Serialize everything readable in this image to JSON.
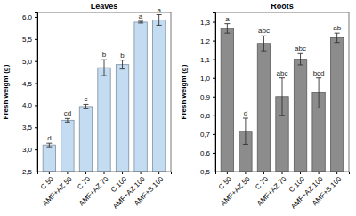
{
  "chart_data": [
    {
      "type": "bar",
      "title": "Leaves",
      "y_label": "Fresh weight (g)",
      "categories": [
        "C 50",
        "AMF+AZ 50",
        "C 70",
        "AMF+AZ 70",
        "C 100",
        "AMF+AZ 100",
        "AMF+S 100"
      ],
      "values": [
        3.1,
        3.66,
        3.97,
        4.85,
        4.92,
        5.88,
        5.93
      ],
      "errors": [
        0.04,
        0.04,
        0.05,
        0.18,
        0.1,
        0.02,
        0.12
      ],
      "annotations": [
        "d",
        "cd",
        "c",
        "b",
        "b",
        "a",
        "a"
      ],
      "color": "#c3dcf2",
      "ylim": [
        2.5,
        6.1
      ],
      "yticks": [
        {
          "value": 2.5,
          "label": "2,5"
        },
        {
          "value": 3.0,
          "label": "3,0"
        },
        {
          "value": 3.5,
          "label": "3,5"
        },
        {
          "value": 4.0,
          "label": "4,0"
        },
        {
          "value": 4.5,
          "label": "4,5"
        },
        {
          "value": 5.0,
          "label": "5,0"
        },
        {
          "value": 5.5,
          "label": "5,5"
        },
        {
          "value": 6.0,
          "label": "6,0"
        }
      ],
      "grid": false
    },
    {
      "type": "bar",
      "title": "Roots",
      "y_label": "Fresh weight (g)",
      "categories": [
        "C 50",
        "AMF+AZ 50",
        "C 70",
        "AMF+AZ 70",
        "C 100",
        "AMF+AZ 100",
        "AMF+S 100"
      ],
      "values": [
        1.265,
        0.715,
        1.185,
        0.9,
        1.1,
        0.92,
        1.215
      ],
      "errors": [
        0.025,
        0.07,
        0.04,
        0.1,
        0.03,
        0.08,
        0.025
      ],
      "annotations": [
        "a",
        "d",
        "abc",
        "abc",
        "abc",
        "bcd",
        "ab"
      ],
      "color": "#8c8c8c",
      "ylim": [
        0.5,
        1.35
      ],
      "yticks": [
        {
          "value": 0.5,
          "label": "0,5"
        },
        {
          "value": 0.6,
          "label": "0,6"
        },
        {
          "value": 0.7,
          "label": "0,7"
        },
        {
          "value": 0.8,
          "label": "0,8"
        },
        {
          "value": 0.9,
          "label": "0,9"
        },
        {
          "value": 1.0,
          "label": "1,0"
        },
        {
          "value": 1.1,
          "label": "1,1"
        },
        {
          "value": 1.2,
          "label": "1,2"
        },
        {
          "value": 1.3,
          "label": "1,3"
        }
      ],
      "grid": false
    }
  ]
}
